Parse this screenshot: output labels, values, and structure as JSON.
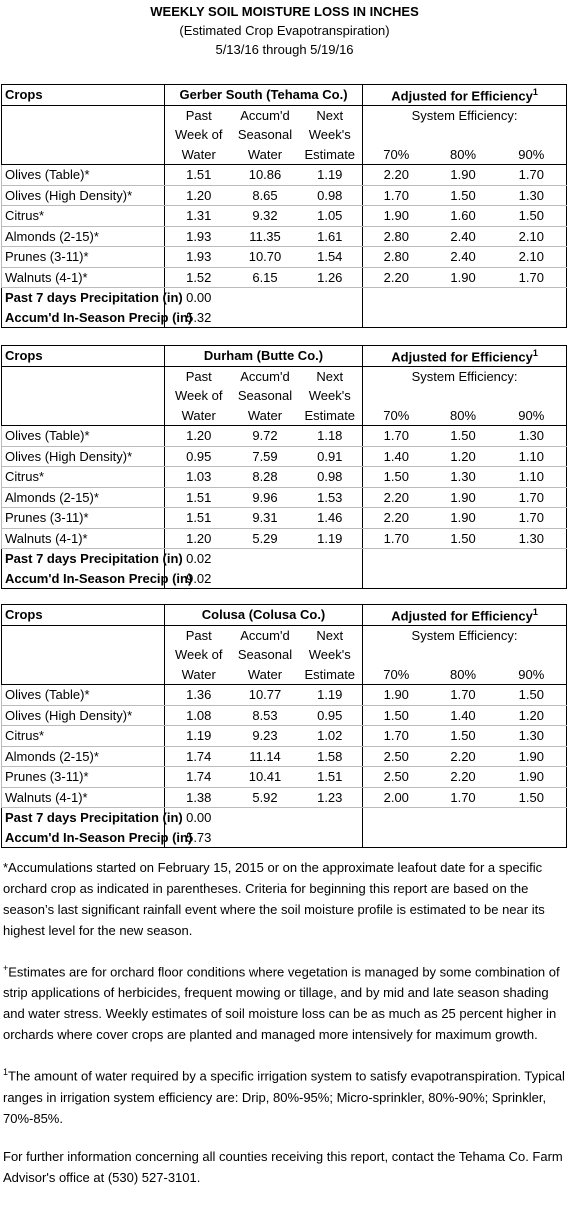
{
  "header": {
    "title": "WEEKLY SOIL MOISTURE LOSS IN INCHES",
    "subtitle": "(Estimated Crop Evapotranspiration)",
    "dates": "5/13/16 through 5/19/16"
  },
  "columns": {
    "crops": "Crops",
    "adjusted": "Adjusted for Efficiency",
    "adjusted_sup": "1",
    "system": "System Efficiency:",
    "heads": [
      [
        "Past",
        "Week of",
        "Water"
      ],
      [
        "Accum'd",
        "Seasonal",
        "Water"
      ],
      [
        "Next",
        "Week's",
        "Estimate"
      ]
    ],
    "efficiency": [
      "70%",
      "80%",
      "90%"
    ]
  },
  "tables": [
    {
      "location": "Gerber South (Tehama Co.)",
      "rows": [
        [
          "Olives (Table)*",
          "1.51",
          "10.86",
          "1.19",
          "2.20",
          "1.90",
          "1.70"
        ],
        [
          "Olives (High Density)*",
          "1.20",
          "8.65",
          "0.98",
          "1.70",
          "1.50",
          "1.30"
        ],
        [
          "Citrus*",
          "1.31",
          "9.32",
          "1.05",
          "1.90",
          "1.60",
          "1.50"
        ],
        [
          "Almonds (2-15)*",
          "1.93",
          "11.35",
          "1.61",
          "2.80",
          "2.40",
          "2.10"
        ],
        [
          "Prunes (3-11)*",
          "1.93",
          "10.70",
          "1.54",
          "2.80",
          "2.40",
          "2.10"
        ],
        [
          "Walnuts (4-1)*",
          "1.52",
          "6.15",
          "1.26",
          "2.20",
          "1.90",
          "1.70"
        ]
      ],
      "precip": [
        [
          "Past 7 days Precipitation (in)",
          "0.00"
        ],
        [
          "Accum'd In-Season Precip (in)",
          "5.32"
        ]
      ]
    },
    {
      "location": "Durham (Butte Co.)",
      "rows": [
        [
          "Olives (Table)*",
          "1.20",
          "9.72",
          "1.18",
          "1.70",
          "1.50",
          "1.30"
        ],
        [
          "Olives (High Density)*",
          "0.95",
          "7.59",
          "0.91",
          "1.40",
          "1.20",
          "1.10"
        ],
        [
          "Citrus*",
          "1.03",
          "8.28",
          "0.98",
          "1.50",
          "1.30",
          "1.10"
        ],
        [
          "Almonds (2-15)*",
          "1.51",
          "9.96",
          "1.53",
          "2.20",
          "1.90",
          "1.70"
        ],
        [
          "Prunes (3-11)*",
          "1.51",
          "9.31",
          "1.46",
          "2.20",
          "1.90",
          "1.70"
        ],
        [
          "Walnuts (4-1)*",
          "1.20",
          "5.29",
          "1.19",
          "1.70",
          "1.50",
          "1.30"
        ]
      ],
      "precip": [
        [
          "Past 7 days Precipitation (in)",
          "0.02"
        ],
        [
          "Accum'd In-Season Precip (in)",
          "9.02"
        ]
      ]
    },
    {
      "location": "Colusa (Colusa Co.)",
      "rows": [
        [
          "Olives (Table)*",
          "1.36",
          "10.77",
          "1.19",
          "1.90",
          "1.70",
          "1.50"
        ],
        [
          "Olives (High Density)*",
          "1.08",
          "8.53",
          "0.95",
          "1.50",
          "1.40",
          "1.20"
        ],
        [
          "Citrus*",
          "1.19",
          "9.23",
          "1.02",
          "1.70",
          "1.50",
          "1.30"
        ],
        [
          "Almonds (2-15)*",
          "1.74",
          "11.14",
          "1.58",
          "2.50",
          "2.20",
          "1.90"
        ],
        [
          "Prunes (3-11)*",
          "1.74",
          "10.41",
          "1.51",
          "2.50",
          "2.20",
          "1.90"
        ],
        [
          "Walnuts (4-1)*",
          "1.38",
          "5.92",
          "1.23",
          "2.00",
          "1.70",
          "1.50"
        ]
      ],
      "precip": [
        [
          "Past 7 days Precipitation (in)",
          "0.00"
        ],
        [
          "Accum'd In-Season Precip (in)",
          "5.73"
        ]
      ]
    }
  ],
  "notes": [
    {
      "text": "*Accumulations started on February 15, 2015 or on the approximate leafout date for a specific orchard crop as indicated in parentheses.  Criteria for beginning this report are based on the season’s last significant rainfall event where the soil moisture profile is estimated to be near its highest level for the new season."
    },
    {
      "sup": "+",
      "text": "Estimates are for orchard floor conditions where vegetation is managed by some combination of strip applications of herbicides, frequent mowing or tillage, and by mid and late season shading and water stress.  Weekly estimates of soil moisture loss can be as much as 25 percent higher in orchards where cover crops are planted and managed more intensively for maximum growth."
    },
    {
      "sup": "1",
      "text": "The amount of water required by a specific irrigation system to satisfy evapotranspiration. Typical ranges in irrigation system efficiency are: Drip, 80%-95%; Micro-sprinkler, 80%-90%; Sprinkler, 70%-85%."
    },
    {
      "text": "For further information concerning all counties receiving this report, contact the Tehama Co. Farm Advisor's office at (530) 527-3101."
    }
  ]
}
